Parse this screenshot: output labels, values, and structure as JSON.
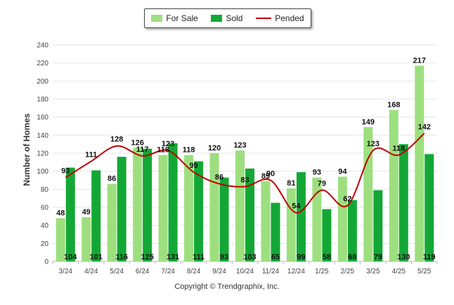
{
  "chart_data": {
    "type": "bar",
    "ylabel": "Number of Homes",
    "ylim": [
      0,
      240
    ],
    "yticks": [
      0,
      20,
      40,
      60,
      80,
      100,
      120,
      140,
      160,
      180,
      200,
      220,
      240
    ],
    "categories": [
      "3/24",
      "4/24",
      "5/24",
      "6/24",
      "7/24",
      "8/24",
      "9/24",
      "10/24",
      "11/24",
      "12/24",
      "1/25",
      "2/25",
      "3/25",
      "4/25",
      "5/25"
    ],
    "series": [
      {
        "name": "For Sale",
        "kind": "bar",
        "color": "#9ddf7f",
        "values": [
          48,
          49,
          86,
          126,
          118,
          118,
          120,
          123,
          89,
          81,
          93,
          94,
          149,
          168,
          217
        ]
      },
      {
        "name": "Sold",
        "kind": "bar",
        "color": "#13a835",
        "values": [
          104,
          101,
          116,
          125,
          131,
          111,
          93,
          103,
          65,
          99,
          58,
          68,
          79,
          130,
          119
        ]
      },
      {
        "name": "Pended",
        "kind": "line",
        "color": "#c00000",
        "values": [
          93,
          111,
          128,
          117,
          123,
          99,
          86,
          83,
          90,
          54,
          79,
          62,
          123,
          118,
          142
        ]
      }
    ],
    "grid": true,
    "legend_position": "top-center"
  },
  "legend": {
    "for_sale": "For Sale",
    "sold": "Sold",
    "pended": "Pended"
  },
  "footer": {
    "copyright": "Copyright © Trendgraphix, Inc."
  }
}
